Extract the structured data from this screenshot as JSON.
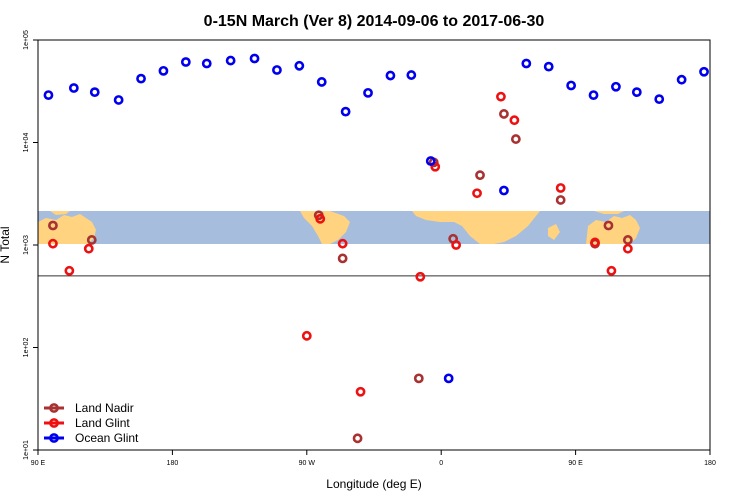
{
  "chart_data": {
    "type": "scatter",
    "title": "0-15N March (Ver 8)   2014-09-06 to 2017-06-30",
    "xlabel": "Longitude (deg E)",
    "ylabel": "N Total",
    "y_scale": "log",
    "ylim": [
      10,
      100000
    ],
    "x_ticks": [
      {
        "x": 0,
        "label": "90 E"
      },
      {
        "x": 90,
        "label": "180"
      },
      {
        "x": 180,
        "label": "90 W"
      },
      {
        "x": 270,
        "label": "0"
      },
      {
        "x": 360,
        "label": "90 E"
      },
      {
        "x": 450,
        "label": "180"
      }
    ],
    "y_ticks": [
      {
        "y": 10,
        "label": "1e+01"
      },
      {
        "y": 100,
        "label": "1e+02"
      },
      {
        "y": 1000,
        "label": "1e+03"
      },
      {
        "y": 10000,
        "label": "1e+04"
      },
      {
        "y": 100000,
        "label": "1e+05"
      }
    ],
    "reference_line_y": 500,
    "map_band": {
      "y_low": 1000,
      "y_high": 2100,
      "ocean_color": "#a7bddd",
      "land_color": "#ffd37f"
    },
    "legend": {
      "position": "bottom-left"
    },
    "series": [
      {
        "name": "Land Nadir",
        "color": "#a83232",
        "points": [
          {
            "x": 10,
            "y": 1550
          },
          {
            "x": 36,
            "y": 1120
          },
          {
            "x": 188,
            "y": 1950
          },
          {
            "x": 204,
            "y": 740
          },
          {
            "x": 214,
            "y": 13
          },
          {
            "x": 255,
            "y": 50
          },
          {
            "x": 265,
            "y": 6400
          },
          {
            "x": 278,
            "y": 1150
          },
          {
            "x": 296,
            "y": 4800
          },
          {
            "x": 312,
            "y": 19000
          },
          {
            "x": 320,
            "y": 10800
          },
          {
            "x": 350,
            "y": 2750
          },
          {
            "x": 373,
            "y": 1030
          },
          {
            "x": 382,
            "y": 1550
          },
          {
            "x": 395,
            "y": 1120
          }
        ]
      },
      {
        "name": "Land Glint",
        "color": "#ee1111",
        "points": [
          {
            "x": 10,
            "y": 1030
          },
          {
            "x": 21,
            "y": 560
          },
          {
            "x": 34,
            "y": 920
          },
          {
            "x": 180,
            "y": 130
          },
          {
            "x": 189,
            "y": 1800
          },
          {
            "x": 204,
            "y": 1030
          },
          {
            "x": 216,
            "y": 37
          },
          {
            "x": 256,
            "y": 490
          },
          {
            "x": 266,
            "y": 5800
          },
          {
            "x": 280,
            "y": 1000
          },
          {
            "x": 294,
            "y": 3200
          },
          {
            "x": 310,
            "y": 28000
          },
          {
            "x": 319,
            "y": 16500
          },
          {
            "x": 350,
            "y": 3600
          },
          {
            "x": 373,
            "y": 1060
          },
          {
            "x": 384,
            "y": 560
          },
          {
            "x": 395,
            "y": 920
          }
        ]
      },
      {
        "name": "Ocean Glint",
        "color": "#0000ee",
        "points": [
          {
            "x": 7,
            "y": 29000
          },
          {
            "x": 24,
            "y": 34000
          },
          {
            "x": 38,
            "y": 31000
          },
          {
            "x": 54,
            "y": 26000
          },
          {
            "x": 69,
            "y": 42000
          },
          {
            "x": 84,
            "y": 50000
          },
          {
            "x": 99,
            "y": 61000
          },
          {
            "x": 113,
            "y": 59000
          },
          {
            "x": 129,
            "y": 63000
          },
          {
            "x": 145,
            "y": 66000
          },
          {
            "x": 160,
            "y": 51000
          },
          {
            "x": 175,
            "y": 56000
          },
          {
            "x": 190,
            "y": 39000
          },
          {
            "x": 206,
            "y": 20000
          },
          {
            "x": 221,
            "y": 30500
          },
          {
            "x": 236,
            "y": 45000
          },
          {
            "x": 250,
            "y": 45500
          },
          {
            "x": 263,
            "y": 6600
          },
          {
            "x": 275,
            "y": 50
          },
          {
            "x": 312,
            "y": 3400
          },
          {
            "x": 327,
            "y": 59000
          },
          {
            "x": 342,
            "y": 55000
          },
          {
            "x": 357,
            "y": 36000
          },
          {
            "x": 372,
            "y": 29000
          },
          {
            "x": 387,
            "y": 35000
          },
          {
            "x": 401,
            "y": 31000
          },
          {
            "x": 416,
            "y": 26500
          },
          {
            "x": 431,
            "y": 41000
          },
          {
            "x": 446,
            "y": 49000
          }
        ]
      }
    ]
  }
}
